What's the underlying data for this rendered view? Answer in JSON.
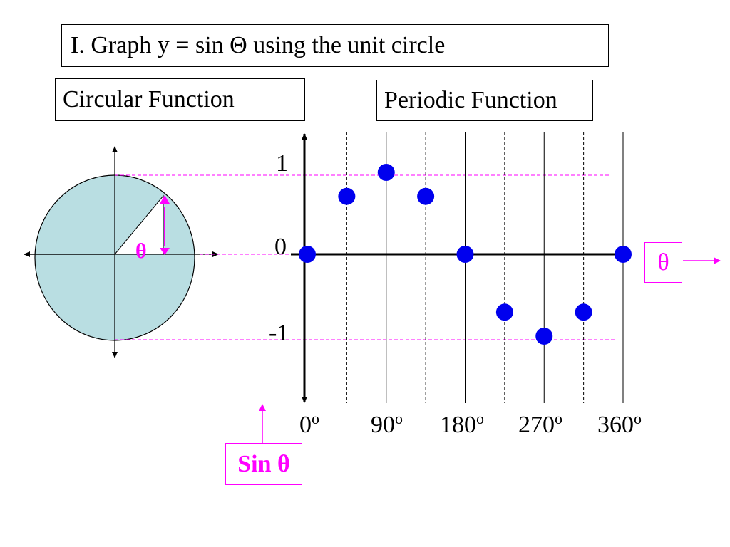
{
  "title": "I.  Graph y = sin Θ using the unit circle",
  "circular_label": "Circular Function",
  "periodic_label": "Periodic Function",
  "theta_label": "θ",
  "sin_theta_label": "Sin θ",
  "circle_theta_label": "θ",
  "y_ticks": {
    "top": "1",
    "zero": "0",
    "bottom": "-1"
  },
  "degree_superscript": "o",
  "x_ticks": [
    {
      "value": "0"
    },
    {
      "value": "90"
    },
    {
      "value": "180"
    },
    {
      "value": "270"
    },
    {
      "value": "360"
    }
  ],
  "colors": {
    "circle_fill": "#b9dee2",
    "points": "#0000ee",
    "accent": "#ff00ff"
  },
  "chart_data": {
    "type": "scatter",
    "x": [
      0,
      45,
      90,
      135,
      180,
      225,
      270,
      315,
      360
    ],
    "y": [
      0,
      0.707,
      1,
      0.707,
      0,
      -0.707,
      -1,
      -0.707,
      0
    ],
    "xlim": [
      0,
      360
    ],
    "ylim": [
      -1,
      1
    ],
    "solid_gridlines_x": [
      90,
      180,
      270,
      360
    ],
    "dashed_gridlines_x": [
      45,
      135,
      225,
      315
    ]
  }
}
